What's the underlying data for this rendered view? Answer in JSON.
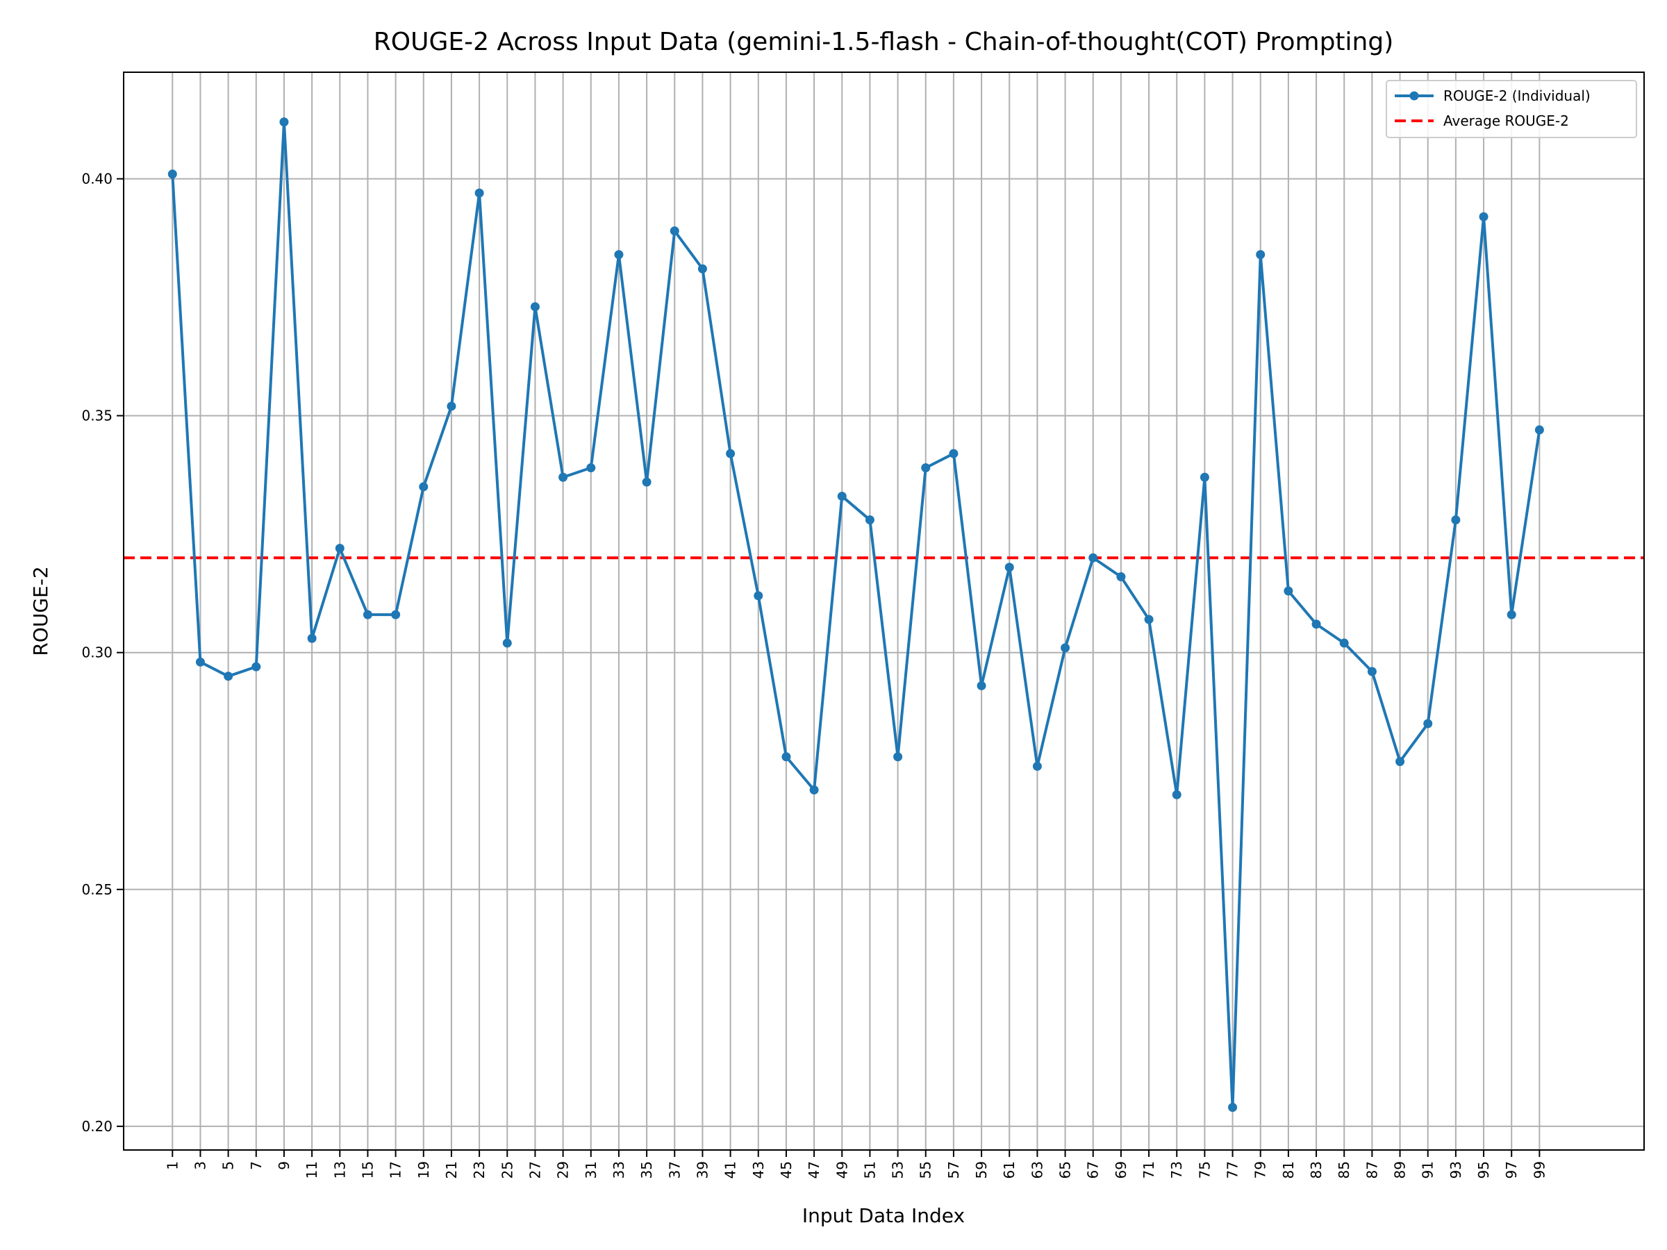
{
  "chart_data": {
    "type": "line",
    "title": "ROUGE-2 Across Input Data (gemini-1.5-flash - Chain-of-thought(COT) Prompting)",
    "xlabel": "Input Data Index",
    "ylabel": "ROUGE-2",
    "xlim": [
      -2.5,
      106.5
    ],
    "ylim": [
      0.195,
      0.4225
    ],
    "x": [
      1,
      3,
      5,
      7,
      9,
      11,
      13,
      15,
      17,
      19,
      21,
      23,
      25,
      27,
      29,
      31,
      33,
      35,
      37,
      39,
      41,
      43,
      45,
      47,
      49,
      51,
      53,
      55,
      57,
      59,
      61,
      63,
      65,
      67,
      69,
      71,
      73,
      75,
      77,
      79,
      81,
      83,
      85,
      87,
      89,
      91,
      93,
      95,
      97,
      99
    ],
    "xticks": [
      "1",
      "3",
      "5",
      "7",
      "9",
      "11",
      "13",
      "15",
      "17",
      "19",
      "21",
      "23",
      "25",
      "27",
      "29",
      "31",
      "33",
      "35",
      "37",
      "39",
      "41",
      "43",
      "45",
      "47",
      "49",
      "51",
      "53",
      "55",
      "57",
      "59",
      "61",
      "63",
      "65",
      "67",
      "69",
      "71",
      "73",
      "75",
      "77",
      "79",
      "81,",
      "83",
      "85",
      "87",
      "89",
      "91",
      "93",
      "95",
      "97",
      "99"
    ],
    "yticks": [
      "0.20",
      "0.25",
      "0.30",
      "0.35",
      "0.40"
    ],
    "yticks_values": [
      0.2,
      0.25,
      0.3,
      0.35,
      0.4
    ],
    "grid": true,
    "legend_position": "top-right",
    "series": [
      {
        "name": "ROUGE-2 (Individual)",
        "style": "solid-with-markers",
        "color": "#1f77b4",
        "values": [
          0.401,
          0.298,
          0.295,
          0.297,
          0.412,
          0.303,
          0.322,
          0.308,
          0.308,
          0.335,
          0.352,
          0.397,
          0.302,
          0.373,
          0.337,
          0.339,
          0.384,
          0.336,
          0.389,
          0.381,
          0.342,
          0.312,
          0.278,
          0.271,
          0.333,
          0.328,
          0.278,
          0.339,
          0.342,
          0.293,
          0.318,
          0.276,
          0.301,
          0.32,
          0.316,
          0.307,
          0.27,
          0.337,
          0.204,
          0.384,
          0.313,
          0.306,
          0.302,
          0.296,
          0.277,
          0.285,
          0.328,
          0.392,
          0.308,
          0.347
        ]
      },
      {
        "name": "Average ROUGE-2",
        "style": "dashed",
        "color": "#ff0000",
        "value": 0.32
      }
    ]
  }
}
